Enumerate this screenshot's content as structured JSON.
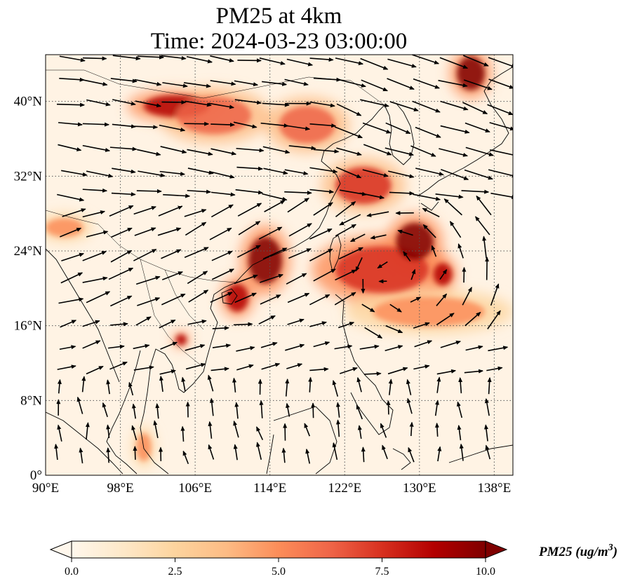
{
  "title": {
    "line1": "PM25 at 4km",
    "line2": "Time: 2024-03-23 03:00:00"
  },
  "map": {
    "extent": {
      "lon": [
        90,
        140
      ],
      "lat": [
        0,
        45
      ]
    },
    "x_ticks": [
      {
        "value": 90,
        "label": "90°E"
      },
      {
        "value": 98,
        "label": "98°E"
      },
      {
        "value": 106,
        "label": "106°E"
      },
      {
        "value": 114,
        "label": "114°E"
      },
      {
        "value": 122,
        "label": "122°E"
      },
      {
        "value": 130,
        "label": "130°E"
      },
      {
        "value": 138,
        "label": "138°E"
      }
    ],
    "y_ticks": [
      {
        "value": 0,
        "label": "0°"
      },
      {
        "value": 8,
        "label": "8°N"
      },
      {
        "value": 16,
        "label": "16°N"
      },
      {
        "value": 24,
        "label": "24°N"
      },
      {
        "value": 32,
        "label": "32°N"
      },
      {
        "value": 40,
        "label": "40°N"
      }
    ],
    "gridlines": "dotted",
    "field_colormap": "OrRd",
    "vectors": "wind arrows (black)",
    "pollution_plumes": [
      {
        "lon": 104,
        "lat": 39.5,
        "rlon": 3.5,
        "rlat": 1.2,
        "value": 9
      },
      {
        "lon": 108,
        "lat": 38.5,
        "rlon": 4,
        "rlat": 2,
        "value": 6
      },
      {
        "lon": 118,
        "lat": 37.5,
        "rlon": 3,
        "rlat": 2,
        "value": 6
      },
      {
        "lon": 113.5,
        "lat": 23,
        "rlon": 1.8,
        "rlat": 2.5,
        "value": 10
      },
      {
        "lon": 110.5,
        "lat": 19,
        "rlon": 1.2,
        "rlat": 1.5,
        "value": 9
      },
      {
        "lon": 126,
        "lat": 22,
        "rlon": 5,
        "rlat": 2.5,
        "value": 8
      },
      {
        "lon": 129.5,
        "lat": 25,
        "rlon": 2,
        "rlat": 2,
        "value": 9.5
      },
      {
        "lon": 132.5,
        "lat": 21.5,
        "rlon": 1,
        "rlat": 1.2,
        "value": 9
      },
      {
        "lon": 131,
        "lat": 17.5,
        "rlon": 6,
        "rlat": 1.6,
        "value": 5
      },
      {
        "lon": 135.5,
        "lat": 43,
        "rlon": 1.5,
        "rlat": 1.8,
        "value": 10
      },
      {
        "lon": 124,
        "lat": 31,
        "rlon": 3,
        "rlat": 2,
        "value": 7
      },
      {
        "lon": 104.5,
        "lat": 14.5,
        "rlon": 0.6,
        "rlat": 0.6,
        "value": 9
      },
      {
        "lon": 92,
        "lat": 26.5,
        "rlon": 2,
        "rlat": 1,
        "value": 5
      },
      {
        "lon": 100.5,
        "lat": 3,
        "rlon": 0.8,
        "rlat": 1.5,
        "value": 5
      }
    ]
  },
  "colorbar": {
    "min": 0.0,
    "max": 10.0,
    "ticks": [
      "0.0",
      "2.5",
      "5.0",
      "7.5",
      "10.0"
    ],
    "label": "PM25 (ug/m",
    "label_superscript": "3",
    "label_close": ")",
    "extend": "both",
    "colors": [
      "#fff7ec",
      "#fee8c8",
      "#fdd49e",
      "#fdbb84",
      "#fc8d59",
      "#ef6548",
      "#d7301f",
      "#b30000",
      "#7f0000"
    ]
  }
}
